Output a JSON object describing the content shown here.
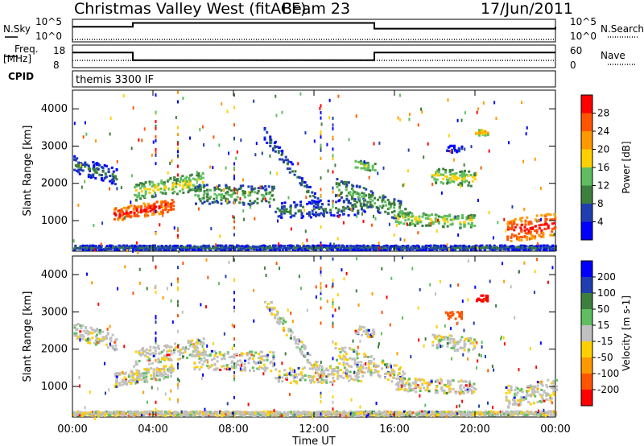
{
  "header": {
    "title": "Christmas Valley West (fitACF)",
    "beam": "Beam 23",
    "date": "17/Jun/2011"
  },
  "panels": {
    "nsky_label": "N.Sky",
    "nsearch_label": "N.Search",
    "freq_label_1": "Freq.",
    "freq_label_2": "[MHz]",
    "nave_label": "Nave",
    "cpid_label": "CPID",
    "cpid_value": "themis 3300 IF",
    "noise_left_ticks": [
      "10^5",
      "10^0"
    ],
    "noise_right_ticks": [
      "10^5",
      "10^0"
    ],
    "freq_ticks": [
      "18",
      "8"
    ],
    "nave_ticks": [
      "60",
      "0"
    ]
  },
  "colors": {
    "power_scale": [
      "#0000ff",
      "#1f3fb0",
      "#3d7f3d",
      "#5fbf5f",
      "#ffd000",
      "#ff9900",
      "#ff5500",
      "#ff0000"
    ],
    "velocity_scale": [
      "#0000ff",
      "#1f3fb0",
      "#3d7f3d",
      "#5fbf5f",
      "#c0c0c0",
      "#ffd000",
      "#ff9900",
      "#ff5500",
      "#ff0000"
    ],
    "gray": "#c0c0c0"
  },
  "chart_data": [
    {
      "type": "line",
      "title": "N.Sky / N.Search",
      "ylabel": "N.Sky",
      "ylim": [
        1,
        100000
      ],
      "yscale": "log",
      "x": [
        "00:00",
        "03:00",
        "15:00",
        "24:00"
      ],
      "series": [
        {
          "name": "N.Sky",
          "values": [
            3000,
            30000,
            1000,
            3000
          ]
        },
        {
          "name": "N.Search",
          "values": [
            1,
            1,
            1,
            1
          ]
        }
      ]
    },
    {
      "type": "line",
      "title": "Freq. / Nave",
      "ylabel": "Freq. [MHz]",
      "ylim": [
        8,
        18
      ],
      "x": [
        "00:00",
        "03:00",
        "15:00",
        "24:00"
      ],
      "series": [
        {
          "name": "Freq.",
          "values": [
            15,
            11,
            15,
            15
          ]
        },
        {
          "name": "Nave",
          "values": [
            25,
            25,
            25,
            25
          ]
        }
      ]
    },
    {
      "type": "heatmap",
      "title": "",
      "xlabel": "Time UT",
      "ylabel": "Slant Range [km]",
      "colorbar_label": "Power [dB]",
      "colorbar_ticks": [
        "4",
        "8",
        "12",
        "16",
        "20",
        "24",
        "28"
      ],
      "x_ticks": [
        "00:00",
        "04:00",
        "08:00",
        "12:00",
        "16:00",
        "20:00",
        "00:00"
      ],
      "y_ticks": [
        "1000",
        "2000",
        "3000",
        "4000"
      ],
      "xlim": [
        0,
        24
      ],
      "ylim": [
        180,
        4500
      ]
    },
    {
      "type": "heatmap",
      "title": "",
      "xlabel": "Time UT",
      "ylabel": "Slant Range [km]",
      "colorbar_label": "Velocity [m s-1]",
      "colorbar_ticks": [
        "200",
        "100",
        "50",
        "15",
        "-15",
        "-50",
        "-100",
        "-200"
      ],
      "x_ticks": [
        "00:00",
        "04:00",
        "08:00",
        "12:00",
        "16:00",
        "20:00",
        "00:00"
      ],
      "y_ticks": [
        "1000",
        "2000",
        "3000",
        "4000"
      ],
      "xlim": [
        0,
        24
      ],
      "ylim": [
        180,
        4500
      ]
    }
  ]
}
